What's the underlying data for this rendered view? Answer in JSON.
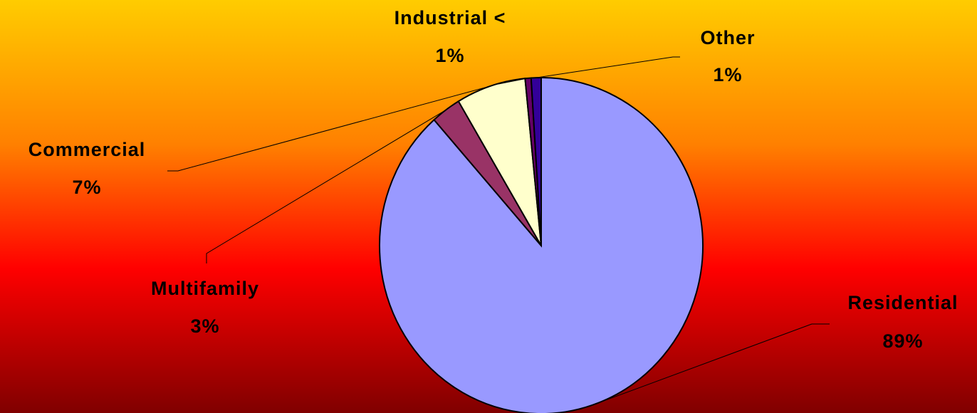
{
  "chart_data": {
    "type": "pie",
    "categories": [
      "Residential",
      "Multifamily",
      "Commercial",
      "Industrial <",
      "Other"
    ],
    "values": [
      89,
      3,
      7,
      0.6,
      1
    ],
    "value_labels": [
      "89%",
      "3%",
      "7%",
      "1%",
      "1%"
    ],
    "colors": [
      "#9999ff",
      "#993366",
      "#ffffcc",
      "#660066",
      "#330099"
    ],
    "start_angle": 0,
    "direction": "clockwise"
  }
}
